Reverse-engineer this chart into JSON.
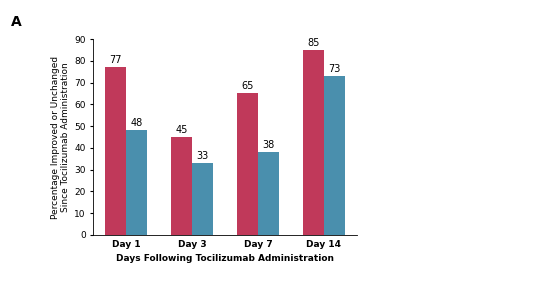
{
  "days": [
    "Day 1",
    "Day 3",
    "Day 7",
    "Day 14"
  ],
  "nonsevere": [
    77,
    45,
    65,
    85
  ],
  "severe": [
    48,
    33,
    38,
    73
  ],
  "nonsevere_color": "#C0395A",
  "severe_color": "#4A8FAD",
  "ylabel": "Percentage Improved or Unchanged\nSince Tocilizumab Administration",
  "xlabel": "Days Following Tocilizumab Administration",
  "ylim": [
    0,
    90
  ],
  "yticks": [
    0,
    10,
    20,
    30,
    40,
    50,
    60,
    70,
    80,
    90
  ],
  "panel_label": "A",
  "bar_width": 0.32,
  "label_fontsize": 6.5,
  "tick_fontsize": 6.5,
  "annot_fontsize": 7.0,
  "legend_fontsize": 6.5
}
